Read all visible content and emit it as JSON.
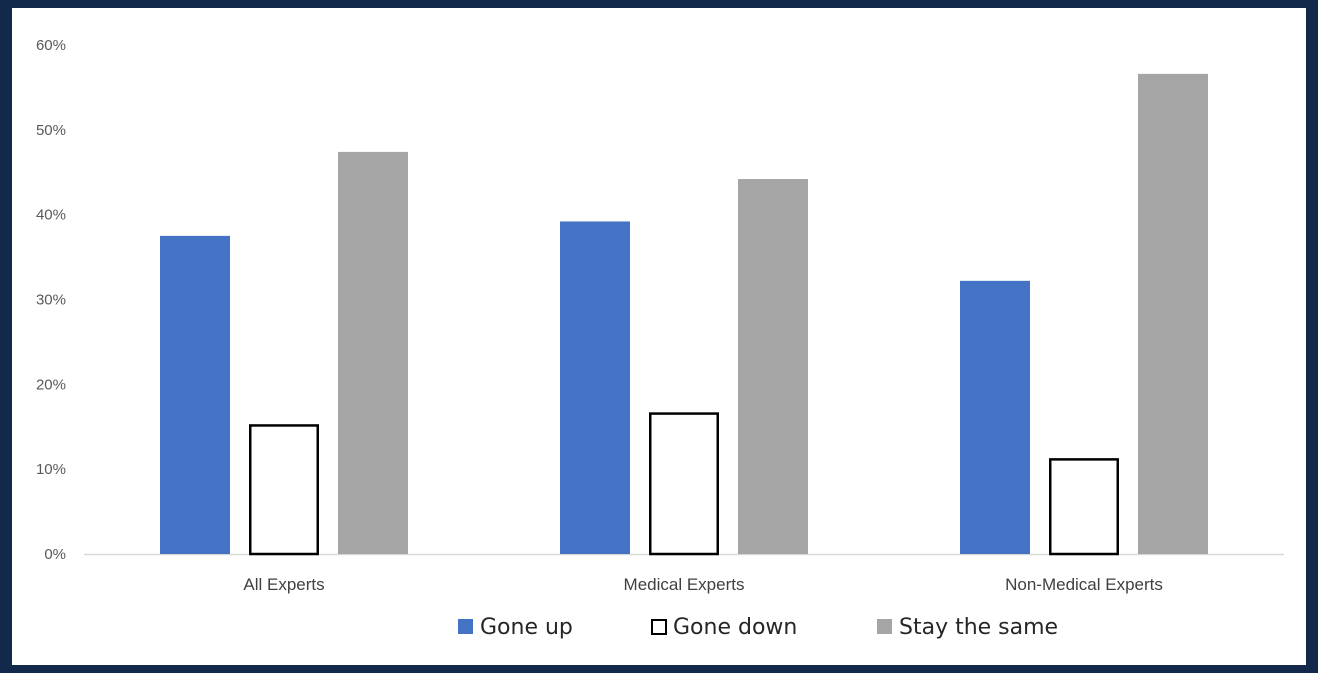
{
  "chart_data": {
    "type": "bar",
    "title": "",
    "xlabel": "",
    "ylabel": "",
    "categories": [
      "All Experts",
      "Medical Experts",
      "Non-Medical Experts"
    ],
    "series": [
      {
        "name": "Gone up",
        "values": [
          37.5,
          39.2,
          32.2
        ],
        "color": "#4472c4",
        "style": "filled"
      },
      {
        "name": "Gone down",
        "values": [
          15.3,
          16.7,
          11.3
        ],
        "color": "#ffffff",
        "stroke": "#000000",
        "style": "outlined"
      },
      {
        "name": "Stay the same",
        "values": [
          47.4,
          44.2,
          56.6
        ],
        "color": "#a5a5a5",
        "style": "filled"
      }
    ],
    "ylim": [
      0,
      60
    ],
    "yticks": [
      0,
      10,
      20,
      30,
      40,
      50,
      60
    ],
    "ytick_labels": [
      "0%",
      "10%",
      "20%",
      "30%",
      "40%",
      "50%",
      "60%"
    ],
    "grid": false,
    "legend_position": "bottom"
  },
  "colors": {
    "border": "#13294b",
    "axis": "#d9d9d9",
    "background": "#ffffff"
  }
}
